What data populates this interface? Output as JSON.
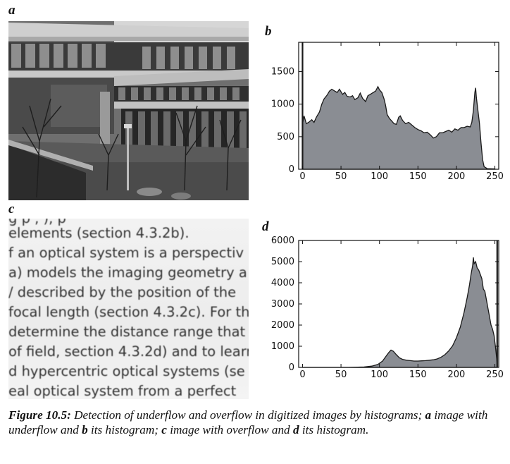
{
  "panels": {
    "a": "a",
    "b": "b",
    "c": "c",
    "d": "d"
  },
  "text_image": {
    "lines": [
      "g   p     ,           ),   p",
      "elements (section 4.3.2b).",
      "f an optical system is a perspectiv",
      "a) models the imaging geometry a",
      "/ described by the position of the",
      "focal length (section 4.3.2c). For th",
      "determine the distance range that",
      "of field, section 4.3.2d) and to learn",
      "d hypercentric optical systems (se",
      "eal optical system from a perfect"
    ]
  },
  "caption": {
    "label": "Figure 10.5:",
    "t1": " Detection of underflow and overflow in digitized images by histograms; ",
    "a": "a",
    "t2": " image with underflow and ",
    "b": "b",
    "t3": " its histogram; ",
    "c": "c",
    "t4": " image with overflow and ",
    "d": "d",
    "t5": " its histogram."
  },
  "colors": {
    "fill": "#8a8d93",
    "stroke": "#1a1a1a"
  },
  "chart_data": [
    {
      "panel": "b",
      "type": "area",
      "title": "",
      "xlabel": "",
      "ylabel": "",
      "xlim": [
        -5,
        255
      ],
      "ylim": [
        0,
        1950
      ],
      "xticks": [
        0,
        50,
        100,
        150,
        200,
        250
      ],
      "yticks": [
        0,
        500,
        1000,
        1500
      ],
      "ytick_labels": [
        "0",
        "500",
        "1000",
        "1500"
      ],
      "spike": {
        "x": 0,
        "y": 1950
      },
      "points": [
        [
          0,
          700
        ],
        [
          2,
          820
        ],
        [
          5,
          700
        ],
        [
          8,
          720
        ],
        [
          12,
          760
        ],
        [
          15,
          720
        ],
        [
          18,
          800
        ],
        [
          22,
          880
        ],
        [
          25,
          1000
        ],
        [
          28,
          1080
        ],
        [
          32,
          1140
        ],
        [
          35,
          1200
        ],
        [
          38,
          1230
        ],
        [
          42,
          1200
        ],
        [
          45,
          1180
        ],
        [
          48,
          1230
        ],
        [
          52,
          1150
        ],
        [
          55,
          1180
        ],
        [
          58,
          1120
        ],
        [
          62,
          1110
        ],
        [
          65,
          1130
        ],
        [
          68,
          1070
        ],
        [
          72,
          1100
        ],
        [
          75,
          1170
        ],
        [
          78,
          1090
        ],
        [
          82,
          1040
        ],
        [
          85,
          1130
        ],
        [
          88,
          1150
        ],
        [
          92,
          1180
        ],
        [
          95,
          1200
        ],
        [
          98,
          1270
        ],
        [
          100,
          1220
        ],
        [
          103,
          1180
        ],
        [
          106,
          1080
        ],
        [
          108,
          980
        ],
        [
          110,
          840
        ],
        [
          113,
          780
        ],
        [
          116,
          740
        ],
        [
          119,
          700
        ],
        [
          122,
          690
        ],
        [
          125,
          800
        ],
        [
          127,
          820
        ],
        [
          130,
          750
        ],
        [
          134,
          700
        ],
        [
          138,
          720
        ],
        [
          142,
          680
        ],
        [
          146,
          640
        ],
        [
          150,
          610
        ],
        [
          154,
          590
        ],
        [
          158,
          560
        ],
        [
          162,
          570
        ],
        [
          166,
          530
        ],
        [
          170,
          480
        ],
        [
          174,
          500
        ],
        [
          178,
          560
        ],
        [
          182,
          560
        ],
        [
          186,
          580
        ],
        [
          190,
          600
        ],
        [
          194,
          570
        ],
        [
          198,
          620
        ],
        [
          202,
          600
        ],
        [
          206,
          640
        ],
        [
          210,
          640
        ],
        [
          214,
          660
        ],
        [
          218,
          650
        ],
        [
          220,
          720
        ],
        [
          222,
          900
        ],
        [
          224,
          1180
        ],
        [
          225,
          1250
        ],
        [
          226,
          1100
        ],
        [
          228,
          900
        ],
        [
          230,
          700
        ],
        [
          232,
          400
        ],
        [
          234,
          150
        ],
        [
          236,
          40
        ],
        [
          240,
          10
        ],
        [
          250,
          5
        ]
      ]
    },
    {
      "panel": "d",
      "type": "area",
      "title": "",
      "xlabel": "",
      "ylabel": "",
      "xlim": [
        -5,
        255
      ],
      "ylim": [
        0,
        6000
      ],
      "xticks": [
        0,
        50,
        100,
        150,
        200,
        250
      ],
      "yticks": [
        0,
        1000,
        2000,
        3000,
        4000,
        5000,
        6000
      ],
      "ytick_labels": [
        "0",
        "1000",
        "2000",
        "3000",
        "4000",
        "5000",
        "6000"
      ],
      "spike": {
        "x": 253,
        "y": 6000
      },
      "points": [
        [
          0,
          0
        ],
        [
          60,
          0
        ],
        [
          80,
          20
        ],
        [
          90,
          60
        ],
        [
          98,
          140
        ],
        [
          104,
          300
        ],
        [
          108,
          500
        ],
        [
          112,
          700
        ],
        [
          115,
          820
        ],
        [
          118,
          760
        ],
        [
          122,
          600
        ],
        [
          126,
          450
        ],
        [
          130,
          380
        ],
        [
          135,
          340
        ],
        [
          140,
          320
        ],
        [
          145,
          300
        ],
        [
          150,
          300
        ],
        [
          155,
          310
        ],
        [
          160,
          320
        ],
        [
          165,
          340
        ],
        [
          170,
          360
        ],
        [
          175,
          400
        ],
        [
          180,
          480
        ],
        [
          185,
          600
        ],
        [
          190,
          780
        ],
        [
          195,
          1020
        ],
        [
          200,
          1400
        ],
        [
          205,
          1900
        ],
        [
          210,
          2600
        ],
        [
          214,
          3300
        ],
        [
          217,
          3900
        ],
        [
          219,
          4400
        ],
        [
          221,
          4800
        ],
        [
          222,
          5200
        ],
        [
          223,
          4900
        ],
        [
          225,
          5000
        ],
        [
          227,
          4700
        ],
        [
          229,
          4600
        ],
        [
          231,
          4400
        ],
        [
          233,
          4200
        ],
        [
          235,
          3700
        ],
        [
          237,
          3600
        ],
        [
          239,
          3200
        ],
        [
          241,
          2800
        ],
        [
          243,
          2400
        ],
        [
          245,
          2000
        ],
        [
          247,
          1800
        ],
        [
          249,
          1500
        ],
        [
          251,
          900
        ],
        [
          253,
          200
        ]
      ]
    }
  ]
}
